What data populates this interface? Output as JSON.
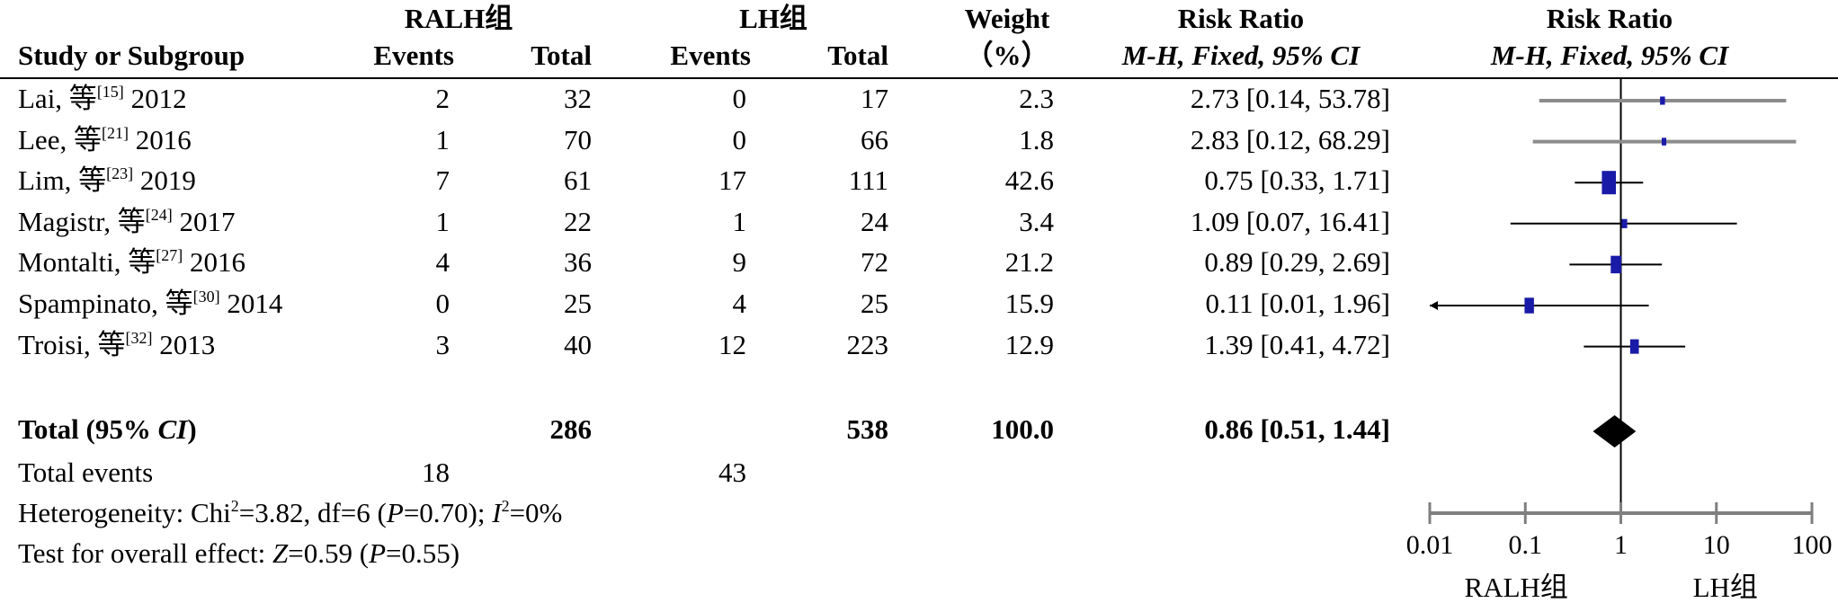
{
  "headers": {
    "group1": "RALH组",
    "group2": "LH组",
    "study": "Study or Subgroup",
    "events": "Events",
    "total": "Total",
    "weight_1": "Weight",
    "weight_2": "（%）",
    "rr_1": "Risk Ratio",
    "rr_2": "M-H, Fixed, 95% CI",
    "plot_1": "Risk Ratio",
    "plot_2": "M-H, Fixed, 95% CI"
  },
  "studies": [
    {
      "name": "Lai, 等",
      "ref": "[15]",
      "year": "2012",
      "e1": "2",
      "t1": "32",
      "e2": "0",
      "t2": "17",
      "weight": "2.3",
      "ci_text": "2.73 [0.14, 53.78]"
    },
    {
      "name": "Lee, 等",
      "ref": "[21]",
      "year": "2016",
      "e1": "1",
      "t1": "70",
      "e2": "0",
      "t2": "66",
      "weight": "1.8",
      "ci_text": "2.83 [0.12, 68.29]"
    },
    {
      "name": "Lim, 等",
      "ref": "[23]",
      "year": "2019",
      "e1": "7",
      "t1": "61",
      "e2": "17",
      "t2": "111",
      "weight": "42.6",
      "ci_text": "0.75 [0.33, 1.71]"
    },
    {
      "name": "Magistr, 等",
      "ref": "[24]",
      "year": "2017",
      "e1": "1",
      "t1": "22",
      "e2": "1",
      "t2": "24",
      "weight": "3.4",
      "ci_text": "1.09 [0.07, 16.41]"
    },
    {
      "name": "Montalti, 等",
      "ref": "[27]",
      "year": "2016",
      "e1": "4",
      "t1": "36",
      "e2": "9",
      "t2": "72",
      "weight": "21.2",
      "ci_text": "0.89 [0.29, 2.69]"
    },
    {
      "name": "Spampinato, 等",
      "ref": "[30]",
      "year": "2014",
      "e1": "0",
      "t1": "25",
      "e2": "4",
      "t2": "25",
      "weight": "15.9",
      "ci_text": "0.11 [0.01, 1.96]"
    },
    {
      "name": "Troisi, 等",
      "ref": "[32]",
      "year": "2013",
      "e1": "3",
      "t1": "40",
      "e2": "12",
      "t2": "223",
      "weight": "12.9",
      "ci_text": "1.39 [0.41, 4.72]"
    }
  ],
  "total": {
    "label_a": "Total (95% ",
    "label_b": "CI",
    "label_c": ")",
    "t1": "286",
    "t2": "538",
    "weight": "100.0",
    "ci_text": "0.86 [0.51, 1.44]"
  },
  "total_events": {
    "label": "Total events",
    "e1": "18",
    "e2": "43"
  },
  "heterogeneity": {
    "a": "Heterogeneity: Chi",
    "sup2": "2",
    "b": "=3.82, df=6 (",
    "p": "P",
    "c": "=0.70); ",
    "i": "I",
    "sup2b": "2",
    "d": "=0%"
  },
  "overall": {
    "a": "Test for overall effect: ",
    "z": "Z",
    "b": "=0.59 (",
    "p": "P",
    "c": "=0.55)"
  },
  "colors": {
    "square": "#1a1aa8",
    "ci_line": "#000000",
    "ci_clipped": "#8c8c8c",
    "diamond": "#000000",
    "axis": "#7f7f7f"
  },
  "chart_data": {
    "type": "forest",
    "scale": "log",
    "xlim": [
      0.01,
      100
    ],
    "ticks": [
      {
        "value": 0.01,
        "label": "0.01"
      },
      {
        "value": 0.1,
        "label": "0.1"
      },
      {
        "value": 1,
        "label": "1"
      },
      {
        "value": 10,
        "label": "10"
      },
      {
        "value": 100,
        "label": "100"
      }
    ],
    "favours_left": "RALH组",
    "favours_right": "LH组",
    "points": [
      {
        "rr": 2.73,
        "lo": 0.14,
        "hi": 53.78,
        "weight": 2.3
      },
      {
        "rr": 2.83,
        "lo": 0.12,
        "hi": 68.29,
        "weight": 1.8
      },
      {
        "rr": 0.75,
        "lo": 0.33,
        "hi": 1.71,
        "weight": 42.6
      },
      {
        "rr": 1.09,
        "lo": 0.07,
        "hi": 16.41,
        "weight": 3.4
      },
      {
        "rr": 0.89,
        "lo": 0.29,
        "hi": 2.69,
        "weight": 21.2
      },
      {
        "rr": 0.11,
        "lo": 0.01,
        "hi": 1.96,
        "weight": 15.9
      },
      {
        "rr": 1.39,
        "lo": 0.41,
        "hi": 4.72,
        "weight": 12.9
      }
    ],
    "pooled": {
      "rr": 0.86,
      "lo": 0.51,
      "hi": 1.44
    }
  }
}
